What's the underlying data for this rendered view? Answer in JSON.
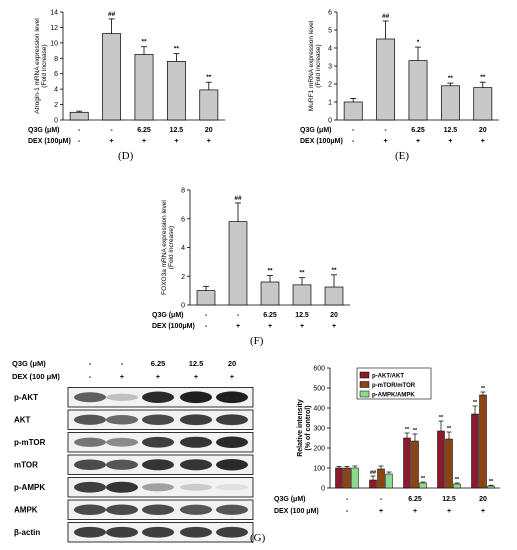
{
  "panel_labels": {
    "d": "(D)",
    "e": "(E)",
    "f": "(F)",
    "g": "(G)"
  },
  "treatment_rows": [
    {
      "label": "Q3G (μM)",
      "values": [
        "-",
        "-",
        "6.25",
        "12.5",
        "20"
      ]
    },
    {
      "label": "DEX (100μM)",
      "values": [
        "-",
        "+",
        "+",
        "+",
        "+"
      ]
    }
  ],
  "g_treatment_rows": [
    {
      "label": "Q3G (μM)",
      "values": [
        "-",
        "-",
        "6.25",
        "12.5",
        "20"
      ]
    },
    {
      "label": "DEX (100 μM)",
      "values": [
        "-",
        "+",
        "+",
        "+",
        "+"
      ]
    }
  ],
  "blot": {
    "header_rows": [
      {
        "label": "Q3G (μM)",
        "values": [
          "-",
          "-",
          "6.25",
          "12.5",
          "20"
        ]
      },
      {
        "label": "DEX (100 μM)",
        "values": [
          "-",
          "+",
          "+",
          "+",
          "+"
        ]
      }
    ],
    "rows": [
      {
        "label": "p-AKT",
        "intensity": [
          0.65,
          0.2,
          0.9,
          0.95,
          0.95
        ]
      },
      {
        "label": "AKT",
        "intensity": [
          0.7,
          0.6,
          0.75,
          0.8,
          0.8
        ]
      },
      {
        "label": "p-mTOR",
        "intensity": [
          0.55,
          0.45,
          0.8,
          0.85,
          0.9
        ]
      },
      {
        "label": "mTOR",
        "intensity": [
          0.75,
          0.7,
          0.85,
          0.85,
          0.9
        ]
      },
      {
        "label": "p-AMPK",
        "intensity": [
          0.8,
          0.85,
          0.35,
          0.15,
          0.05
        ]
      },
      {
        "label": "AMPK",
        "intensity": [
          0.75,
          0.75,
          0.75,
          0.7,
          0.7
        ]
      },
      {
        "label": "β-actin",
        "intensity": [
          0.8,
          0.8,
          0.8,
          0.8,
          0.8
        ]
      }
    ]
  },
  "chart_data": [
    {
      "id": "atrogin",
      "type": "bar",
      "ylabel_lines": [
        "Atrogin-1 mRNA expression level",
        "(Fold increase)"
      ],
      "ylim": [
        0,
        14
      ],
      "yticks": [
        0,
        2,
        4,
        6,
        8,
        10,
        12,
        14
      ],
      "values": [
        1.0,
        11.2,
        8.5,
        7.6,
        3.9
      ],
      "errors": [
        0.15,
        1.9,
        1.0,
        1.0,
        1.0
      ],
      "annotations": [
        "",
        "##",
        "**",
        "**",
        "**"
      ]
    },
    {
      "id": "murf1",
      "type": "bar",
      "ylabel_lines": [
        "MuRF1 mRNA expression level",
        "(Fold increase)"
      ],
      "ylim": [
        0,
        6
      ],
      "yticks": [
        0,
        1,
        2,
        3,
        4,
        5,
        6
      ],
      "values": [
        1.0,
        4.5,
        3.3,
        1.9,
        1.8
      ],
      "errors": [
        0.2,
        1.0,
        0.75,
        0.15,
        0.3
      ],
      "annotations": [
        "",
        "##",
        "*",
        "**",
        "**"
      ]
    },
    {
      "id": "foxo3a",
      "type": "bar",
      "ylabel_lines": [
        "FOXO3a mRNA expression level",
        "(Fold increase)"
      ],
      "ylim": [
        0,
        8
      ],
      "yticks": [
        0,
        2,
        4,
        6,
        8
      ],
      "values": [
        1.0,
        5.8,
        1.6,
        1.4,
        1.25
      ],
      "errors": [
        0.3,
        1.3,
        0.45,
        0.5,
        0.85
      ],
      "annotations": [
        "",
        "##",
        "**",
        "**",
        "**"
      ]
    },
    {
      "id": "intensity",
      "type": "bar",
      "ylabel_lines": [
        "Relative intensity",
        "(% of control)"
      ],
      "ylim": [
        0,
        600
      ],
      "yticks": [
        0,
        100,
        200,
        300,
        400,
        500,
        600
      ],
      "series": [
        {
          "name": "p-AKT/AKT",
          "color": "#8b1a2b",
          "values": [
            100,
            40,
            250,
            285,
            370
          ],
          "errors": [
            8,
            20,
            25,
            50,
            40
          ],
          "annotations": [
            "",
            "##",
            "**",
            "**",
            "**"
          ]
        },
        {
          "name": "p-mTOR/mTOR",
          "color": "#8b4513",
          "values": [
            100,
            95,
            235,
            245,
            465
          ],
          "errors": [
            8,
            15,
            35,
            35,
            15
          ],
          "annotations": [
            "",
            "",
            "**",
            "**",
            "**"
          ]
        },
        {
          "name": "p-AMPK/AMPK",
          "color": "#8fd98f",
          "values": [
            100,
            70,
            25,
            20,
            10
          ],
          "errors": [
            10,
            10,
            5,
            5,
            4
          ],
          "annotations": [
            "",
            "",
            "**",
            "**",
            "**"
          ]
        }
      ]
    }
  ]
}
